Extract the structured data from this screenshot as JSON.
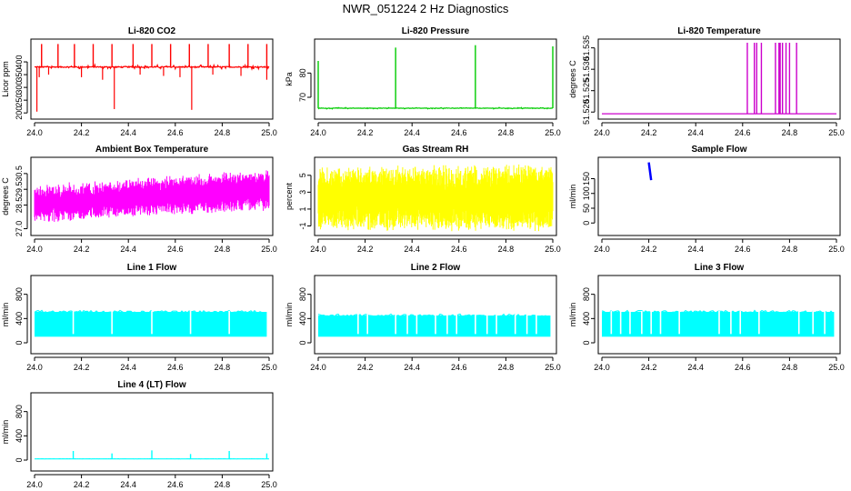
{
  "title": "NWR_051224  2 Hz Diagnostics",
  "chart_data": [
    {
      "type": "line",
      "title": "Li-820 CO2",
      "ylabel": "Licor ppm",
      "xlim": [
        24.0,
        25.0
      ],
      "ylim": [
        190,
        475
      ],
      "x_ticks": [
        24.0,
        24.2,
        24.4,
        24.6,
        24.8,
        25.0
      ],
      "x_tick_labels": [
        "24.0",
        "24.2",
        "24.4",
        "24.6",
        "24.8",
        "25.0"
      ],
      "y_ticks": [
        200,
        250,
        300,
        350,
        400
      ],
      "y_tick_labels": [
        "200",
        "250",
        "300",
        "350",
        "400"
      ],
      "color": "#ff0000",
      "pattern": "baseline_spikes",
      "baseline": 380,
      "noise": 8,
      "spikes_up": [
        [
          24.03,
          470
        ],
        [
          24.1,
          470
        ],
        [
          24.17,
          470
        ],
        [
          24.25,
          470
        ],
        [
          24.33,
          470
        ],
        [
          24.42,
          470
        ],
        [
          24.5,
          470
        ],
        [
          24.58,
          470
        ],
        [
          24.66,
          470
        ],
        [
          24.74,
          470
        ],
        [
          24.83,
          470
        ],
        [
          24.91,
          470
        ],
        [
          24.99,
          470
        ]
      ],
      "spikes_down": [
        [
          24.01,
          205
        ],
        [
          24.02,
          340
        ],
        [
          24.06,
          350
        ],
        [
          24.2,
          340
        ],
        [
          24.29,
          330
        ],
        [
          24.34,
          215
        ],
        [
          24.45,
          350
        ],
        [
          24.55,
          345
        ],
        [
          24.62,
          340
        ],
        [
          24.67,
          212
        ],
        [
          24.76,
          350
        ],
        [
          24.88,
          345
        ],
        [
          24.99,
          330
        ]
      ]
    },
    {
      "type": "line",
      "title": "Li-820 Pressure",
      "ylabel": "kPa",
      "xlim": [
        24.0,
        25.0
      ],
      "ylim": [
        62.5,
        92.5
      ],
      "x_ticks": [
        24.0,
        24.2,
        24.4,
        24.6,
        24.8,
        25.0
      ],
      "x_tick_labels": [
        "24.0",
        "24.2",
        "24.4",
        "24.6",
        "24.8",
        "25.0"
      ],
      "y_ticks": [
        70,
        80
      ],
      "y_tick_labels": [
        "70",
        "80"
      ],
      "color": "#00cc00",
      "pattern": "baseline_spikes",
      "baseline": 65.5,
      "noise": 0.3,
      "spikes_up": [
        [
          24.0,
          85
        ],
        [
          24.33,
          90.5
        ],
        [
          24.67,
          91.5
        ],
        [
          25.0,
          91
        ]
      ],
      "spikes_down": []
    },
    {
      "type": "line",
      "title": "Li-820 Temperature",
      "ylabel": "degrees C",
      "xlim": [
        24.0,
        25.0
      ],
      "ylim": [
        51.5192,
        51.5362
      ],
      "x_ticks": [
        24.0,
        24.2,
        24.4,
        24.6,
        24.8,
        25.0
      ],
      "x_tick_labels": [
        "24.0",
        "24.2",
        "24.4",
        "24.6",
        "24.8",
        "25.0"
      ],
      "y_ticks": [
        51.52,
        51.525,
        51.53,
        51.535
      ],
      "y_tick_labels": [
        "51.520",
        "51.525",
        "51.530",
        "51.535"
      ],
      "color": "#cc00cc",
      "pattern": "baseline_spikes",
      "baseline": 51.5196,
      "noise": 0,
      "spikes_up": [
        [
          24.62,
          51.5362
        ],
        [
          24.65,
          51.5362
        ],
        [
          24.66,
          51.5362
        ],
        [
          24.68,
          51.5362
        ],
        [
          24.74,
          51.5362
        ],
        [
          24.755,
          51.5362
        ],
        [
          24.76,
          51.5362
        ],
        [
          24.77,
          51.5362
        ],
        [
          24.785,
          51.5362
        ],
        [
          24.8,
          51.5362
        ],
        [
          24.83,
          51.5362
        ]
      ],
      "spikes_down": []
    },
    {
      "type": "line",
      "title": "Ambient Box Temperature",
      "ylabel": "degrees C",
      "xlim": [
        24.0,
        25.0
      ],
      "ylim": [
        26.8,
        31.3
      ],
      "x_ticks": [
        24.0,
        24.2,
        24.4,
        24.6,
        24.8,
        25.0
      ],
      "x_tick_labels": [
        "24.0",
        "24.2",
        "24.4",
        "24.6",
        "24.8",
        "25.0"
      ],
      "y_ticks": [
        27,
        28.5,
        29.5,
        30.5
      ],
      "y_tick_labels": [
        "27.0",
        "28.5",
        "29.5",
        "30.5"
      ],
      "color": "#ff00ff",
      "pattern": "noise_band",
      "lower_start": 27.6,
      "lower_end": 28.4,
      "upper_start": 29.6,
      "upper_end": 30.6,
      "n": 520
    },
    {
      "type": "line",
      "title": "Gas Stream RH",
      "ylabel": "percent",
      "xlim": [
        24.0,
        25.0
      ],
      "ylim": [
        -1.7,
        6.7
      ],
      "x_ticks": [
        24.0,
        24.2,
        24.4,
        24.6,
        24.8,
        25.0
      ],
      "x_tick_labels": [
        "24.0",
        "24.2",
        "24.4",
        "24.6",
        "24.8",
        "25.0"
      ],
      "y_ticks": [
        -1,
        1,
        3,
        5
      ],
      "y_tick_labels": [
        "-1",
        "1",
        "3",
        "5"
      ],
      "color": "#ffff00",
      "pattern": "noise_band",
      "lower_start": -0.9,
      "lower_end": -0.9,
      "upper_start": 5.5,
      "upper_end": 5.8,
      "n": 650
    },
    {
      "type": "line",
      "title": "Sample Flow",
      "ylabel": "ml/min",
      "xlim": [
        24.0,
        25.0
      ],
      "ylim": [
        -30,
        210
      ],
      "x_ticks": [
        24.0,
        24.2,
        24.4,
        24.6,
        24.8,
        25.0
      ],
      "x_tick_labels": [
        "24.0",
        "24.2",
        "24.4",
        "24.6",
        "24.8",
        "25.0"
      ],
      "y_ticks": [
        0,
        50,
        100,
        150
      ],
      "y_tick_labels": [
        "0",
        "50",
        "100",
        "150"
      ],
      "color": "#0000ff",
      "pattern": "segment",
      "segment_x": [
        24.2,
        24.21
      ],
      "segment_y": [
        205,
        145
      ]
    },
    {
      "type": "line",
      "title": "Line 1 Flow",
      "ylabel": "ml/min",
      "xlim": [
        24.0,
        25.0
      ],
      "ylim": [
        -120,
        1050
      ],
      "x_ticks": [
        24.0,
        24.2,
        24.4,
        24.6,
        24.8,
        25.0
      ],
      "x_tick_labels": [
        "24.0",
        "24.2",
        "24.4",
        "24.6",
        "24.8",
        "25.0"
      ],
      "y_ticks": [
        0,
        400,
        800
      ],
      "y_tick_labels": [
        "0",
        "400",
        "800"
      ],
      "color": "#00ffff",
      "pattern": "flow_band",
      "low": 100,
      "high": 510,
      "x_start": 24.0,
      "x_end": 24.99,
      "gaps": [
        24.165,
        24.33,
        24.5,
        24.665,
        24.83
      ]
    },
    {
      "type": "line",
      "title": "Line 2 Flow",
      "ylabel": "ml/min",
      "xlim": [
        24.0,
        25.0
      ],
      "ylim": [
        -120,
        1050
      ],
      "x_ticks": [
        24.0,
        24.2,
        24.4,
        24.6,
        24.8,
        25.0
      ],
      "x_tick_labels": [
        "24.0",
        "24.2",
        "24.4",
        "24.6",
        "24.8",
        "25.0"
      ],
      "y_ticks": [
        0,
        400,
        800
      ],
      "y_tick_labels": [
        "0",
        "400",
        "800"
      ],
      "color": "#00ffff",
      "pattern": "flow_band",
      "low": 100,
      "high": 450,
      "x_start": 24.0,
      "x_end": 24.99,
      "gaps": [
        24.17,
        24.21,
        24.33,
        24.38,
        24.42,
        24.5,
        24.55,
        24.59,
        24.67,
        24.72,
        24.76,
        24.84,
        24.89,
        24.93
      ]
    },
    {
      "type": "line",
      "title": "Line 3 Flow",
      "ylabel": "ml/min",
      "xlim": [
        24.0,
        25.0
      ],
      "ylim": [
        -120,
        1050
      ],
      "x_ticks": [
        24.0,
        24.2,
        24.4,
        24.6,
        24.8,
        25.0
      ],
      "x_tick_labels": [
        "24.0",
        "24.2",
        "24.4",
        "24.6",
        "24.8",
        "25.0"
      ],
      "y_ticks": [
        0,
        400,
        800
      ],
      "y_tick_labels": [
        "0",
        "400",
        "800"
      ],
      "color": "#00ffff",
      "pattern": "flow_band",
      "low": 100,
      "high": 510,
      "x_start": 24.0,
      "x_end": 24.99,
      "gaps": [
        24.04,
        24.08,
        24.12,
        24.17,
        24.21,
        24.25,
        24.33,
        24.5,
        24.55,
        24.59,
        24.67,
        24.84,
        24.9,
        24.95
      ]
    },
    {
      "type": "line",
      "title": "Line 4 (LT) Flow",
      "ylabel": "ml/min",
      "xlim": [
        24.0,
        25.0
      ],
      "ylim": [
        -120,
        1050
      ],
      "x_ticks": [
        24.0,
        24.2,
        24.4,
        24.6,
        24.8,
        25.0
      ],
      "x_tick_labels": [
        "24.0",
        "24.2",
        "24.4",
        "24.6",
        "24.8",
        "25.0"
      ],
      "y_ticks": [
        0,
        400,
        800
      ],
      "y_tick_labels": [
        "0",
        "400",
        "800"
      ],
      "color": "#00ffff",
      "pattern": "baseline_spikes",
      "baseline": 20,
      "noise": 2,
      "spikes_up": [
        [
          24.165,
          150
        ],
        [
          24.33,
          110
        ],
        [
          24.5,
          160
        ],
        [
          24.665,
          100
        ],
        [
          24.83,
          150
        ],
        [
          24.99,
          110
        ]
      ],
      "spikes_down": []
    }
  ]
}
